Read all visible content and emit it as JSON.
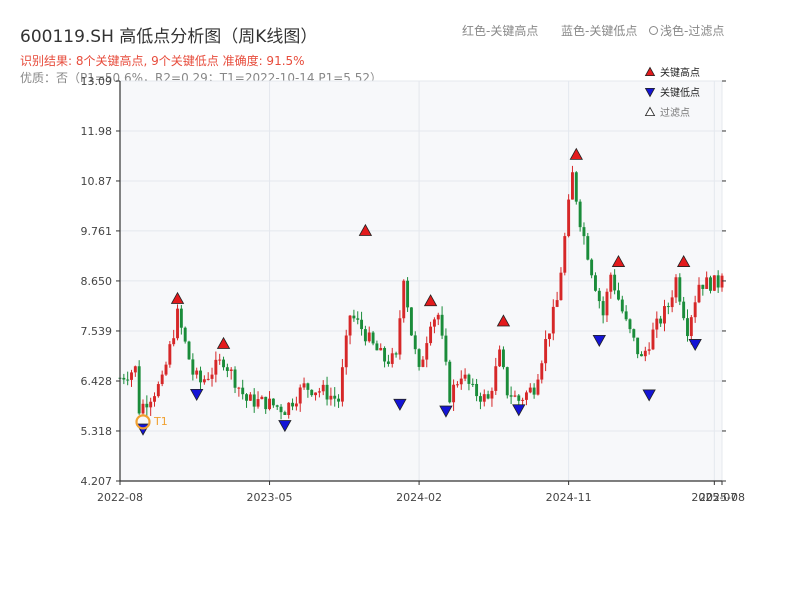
{
  "header": {
    "title": "600119.SH 高低点分析图（周K线图）",
    "result_line": "识别结果: 8个关键高点, 9个关键低点  准确度: 91.5%",
    "quality_line": "优质：否（P1=50.6%，R2=0.29；T1=2022-10-14 P1=5.52）"
  },
  "top_legend": {
    "red": "红色-关键高点",
    "blue": "蓝色-关键低点",
    "light": "浅色-过滤点"
  },
  "colors": {
    "up": "#d62728",
    "down": "#1a8c3a",
    "high_marker": "#e31a1c",
    "low_marker": "#1414d6",
    "t1": "#f0a030",
    "axis": "#333333",
    "grid": "#e4e8ee",
    "plot_bg": "#f7f8fa"
  },
  "chart_data": {
    "type": "candlestick",
    "y_ticks": [
      "4.207",
      "5.318",
      "6.428",
      "7.539",
      "8.650",
      "9.761",
      "10.87",
      "11.98",
      "13.09"
    ],
    "ylim": [
      4.207,
      13.09
    ],
    "x_ticks": [
      {
        "label": "2022-08",
        "week": 0
      },
      {
        "label": "2023-05",
        "week": 39
      },
      {
        "label": "2024-02",
        "week": 78
      },
      {
        "label": "2024-11",
        "week": 117
      },
      {
        "label": "2025-07",
        "week": 155
      },
      {
        "label": "2025-08",
        "week": 157
      }
    ],
    "xlim": [
      0,
      157
    ],
    "grid": true,
    "legend_position": "top-right",
    "legend": [
      {
        "label": "关键高点",
        "marker": "high"
      },
      {
        "label": "关键低点",
        "marker": "low"
      },
      {
        "label": "过滤点",
        "marker": "filtered"
      }
    ],
    "close_path": [
      [
        0,
        6.5
      ],
      [
        4,
        6.7
      ],
      [
        5,
        5.8
      ],
      [
        8,
        6.1
      ],
      [
        11,
        6.4
      ],
      [
        15,
        7.9
      ],
      [
        19,
        6.6
      ],
      [
        21,
        6.4
      ],
      [
        27,
        6.9
      ],
      [
        29,
        6.6
      ],
      [
        33,
        6.0
      ],
      [
        38,
        5.95
      ],
      [
        43,
        5.8
      ],
      [
        48,
        6.3
      ],
      [
        53,
        6.2
      ],
      [
        57,
        6.0
      ],
      [
        60,
        7.9
      ],
      [
        63,
        7.6
      ],
      [
        66,
        7.2
      ],
      [
        69,
        6.9
      ],
      [
        72,
        6.9
      ],
      [
        74,
        8.8
      ],
      [
        76,
        7.5
      ],
      [
        78,
        6.6
      ],
      [
        81,
        7.8
      ],
      [
        83,
        7.9
      ],
      [
        86,
        6.1
      ],
      [
        89,
        6.6
      ],
      [
        92,
        6.2
      ],
      [
        96,
        6.0
      ],
      [
        99,
        7.0
      ],
      [
        101,
        6.2
      ],
      [
        104,
        6.0
      ],
      [
        108,
        6.3
      ],
      [
        111,
        7.3
      ],
      [
        114,
        8.2
      ],
      [
        118,
        11.0
      ],
      [
        120,
        10.0
      ],
      [
        123,
        8.9
      ],
      [
        126,
        7.9
      ],
      [
        128,
        8.8
      ],
      [
        132,
        7.7
      ],
      [
        136,
        6.9
      ],
      [
        139,
        7.5
      ],
      [
        143,
        8.1
      ],
      [
        145,
        8.7
      ],
      [
        148,
        7.6
      ],
      [
        151,
        8.6
      ],
      [
        156,
        8.6
      ],
      [
        157,
        8.9
      ]
    ],
    "key_highs": [
      {
        "week": 15,
        "price": 8.1
      },
      {
        "week": 27,
        "price": 7.1
      },
      {
        "week": 64,
        "price": 9.61
      },
      {
        "week": 81,
        "price": 8.05
      },
      {
        "week": 100,
        "price": 7.6
      },
      {
        "week": 119,
        "price": 11.3
      },
      {
        "week": 130,
        "price": 8.92
      },
      {
        "week": 147,
        "price": 8.92
      }
    ],
    "key_lows": [
      {
        "week": 6,
        "price": 5.52
      },
      {
        "week": 20,
        "price": 6.29
      },
      {
        "week": 43,
        "price": 5.6
      },
      {
        "week": 73,
        "price": 6.07
      },
      {
        "week": 85,
        "price": 5.92
      },
      {
        "week": 104,
        "price": 5.95
      },
      {
        "week": 125,
        "price": 7.49
      },
      {
        "week": 138,
        "price": 6.28
      },
      {
        "week": 150,
        "price": 7.4
      }
    ],
    "t1": {
      "label": "T1",
      "week": 6,
      "price": 5.52
    }
  }
}
